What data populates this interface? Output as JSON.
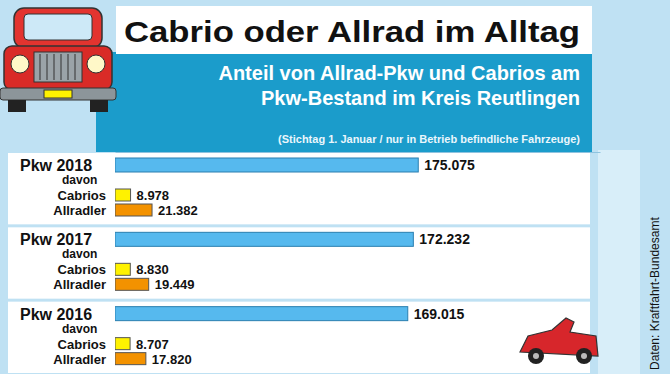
{
  "chart_data": {
    "type": "bar",
    "orientation": "horizontal",
    "title": "Cabrio oder Allrad im Alltag",
    "subtitle": [
      "Anteil von Allrad-Pkw und Cabrios am",
      "Pkw-Bestand im Kreis Reutlingen"
    ],
    "note": "(Stichtag 1. Januar / nur in Betrieb befindliche Fahrzeuge)",
    "source": "Daten: Kraftfahrt-Bundesamt",
    "categories": [
      "Pkw 2018",
      "Pkw 2017",
      "Pkw 2016"
    ],
    "values": [
      175075,
      172232,
      169015
    ],
    "value_labels": [
      "175.075",
      "172.232",
      "169.015"
    ],
    "color": "#56b9ee",
    "sub_label": "davon",
    "series": [
      {
        "name": "Cabrios",
        "color": "#fff200",
        "values": [
          8978,
          8830,
          8707
        ],
        "value_labels": [
          "8.978",
          "8.830",
          "8.707"
        ]
      },
      {
        "name": "Allradler",
        "color": "#f39200",
        "values": [
          21382,
          19449,
          17820
        ],
        "value_labels": [
          "21.382",
          "19.449",
          "17.820"
        ]
      }
    ],
    "xlim": [
      0,
      280000
    ],
    "xticks": [],
    "tick_labels": false,
    "grid": false,
    "data_labels": true
  }
}
